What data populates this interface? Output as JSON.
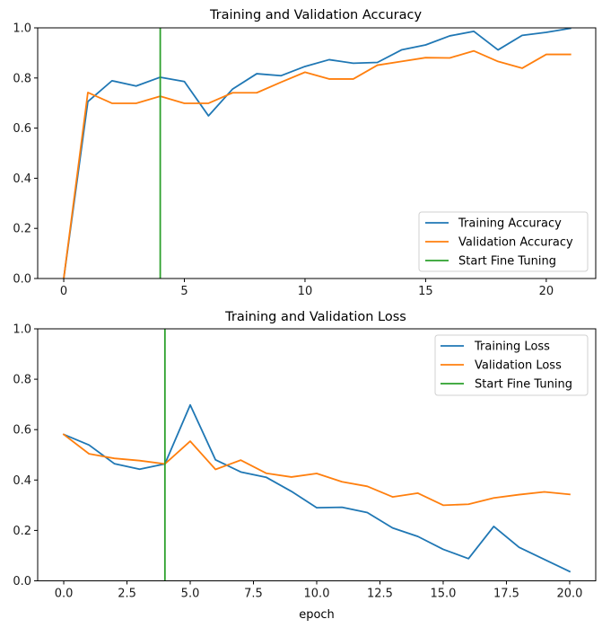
{
  "chart_data": [
    {
      "type": "line",
      "title": "Training and Validation Accuracy",
      "xlabel": "",
      "ylabel": "",
      "xlim": [
        -1.08,
        22.05
      ],
      "ylim": [
        0,
        1
      ],
      "xticks": [
        0,
        5,
        10,
        15,
        20
      ],
      "xtick_labels": [
        "0",
        "5",
        "10",
        "15",
        "20"
      ],
      "yticks": [
        0,
        0.2,
        0.4,
        0.6,
        0.8,
        1.0
      ],
      "ytick_labels": [
        "0.0",
        "0.2",
        "0.4",
        "0.6",
        "0.8",
        "1.0"
      ],
      "grid": false,
      "legend_position": "lower-right",
      "x": [
        0,
        1,
        2,
        3,
        4,
        5,
        6,
        7,
        8,
        9,
        10,
        11,
        12,
        13,
        14,
        15,
        16,
        17,
        18,
        19,
        20,
        21
      ],
      "series": [
        {
          "name": "Training Accuracy",
          "color": "#1f77b4",
          "values": [
            0.0,
            0.706,
            0.789,
            0.768,
            0.803,
            0.786,
            0.649,
            0.756,
            0.817,
            0.809,
            0.846,
            0.873,
            0.859,
            0.862,
            0.912,
            0.932,
            0.968,
            0.986,
            0.912,
            0.97,
            0.982,
            0.998
          ]
        },
        {
          "name": "Validation Accuracy",
          "color": "#ff7f0e",
          "values": [
            0.0,
            0.742,
            0.699,
            0.699,
            0.727,
            0.699,
            0.699,
            0.741,
            0.741,
            0.783,
            0.823,
            0.796,
            0.796,
            0.851,
            0.866,
            0.881,
            0.88,
            0.908,
            0.866,
            0.839,
            0.894,
            0.894
          ]
        }
      ],
      "vline": {
        "name": "Start Fine Tuning",
        "color": "#2ca02c",
        "x": 4
      }
    },
    {
      "type": "line",
      "title": "Training and Validation Loss",
      "xlabel": "epoch",
      "ylabel": "",
      "xlim": [
        -1.03,
        21.03
      ],
      "ylim": [
        0,
        1
      ],
      "xticks": [
        0,
        2.5,
        5,
        7.5,
        10,
        12.5,
        15,
        17.5,
        20
      ],
      "xtick_labels": [
        "0.0",
        "2.5",
        "5.0",
        "7.5",
        "10.0",
        "12.5",
        "15.0",
        "17.5",
        "20.0"
      ],
      "yticks": [
        0,
        0.2,
        0.4,
        0.6,
        0.8,
        1.0
      ],
      "ytick_labels": [
        "0.0",
        "0.2",
        "0.4",
        "0.6",
        "0.8",
        "1.0"
      ],
      "grid": false,
      "legend_position": "upper-right",
      "x": [
        0,
        1,
        2,
        3,
        4,
        5,
        6,
        7,
        8,
        9,
        10,
        11,
        12,
        13,
        14,
        15,
        16,
        17,
        18,
        19,
        20
      ],
      "series": [
        {
          "name": "Training Loss",
          "color": "#1f77b4",
          "values": [
            0.581,
            0.539,
            0.465,
            0.443,
            0.464,
            0.698,
            0.48,
            0.432,
            0.411,
            0.355,
            0.29,
            0.292,
            0.271,
            0.21,
            0.176,
            0.125,
            0.088,
            0.216,
            0.133,
            0.085,
            0.037
          ]
        },
        {
          "name": "Validation Loss",
          "color": "#ff7f0e",
          "values": [
            0.581,
            0.504,
            0.486,
            0.477,
            0.464,
            0.554,
            0.442,
            0.479,
            0.427,
            0.412,
            0.426,
            0.393,
            0.375,
            0.333,
            0.348,
            0.3,
            0.304,
            0.329,
            0.342,
            0.353,
            0.343
          ]
        }
      ],
      "vline": {
        "name": "Start Fine Tuning",
        "color": "#2ca02c",
        "x": 4
      }
    }
  ]
}
